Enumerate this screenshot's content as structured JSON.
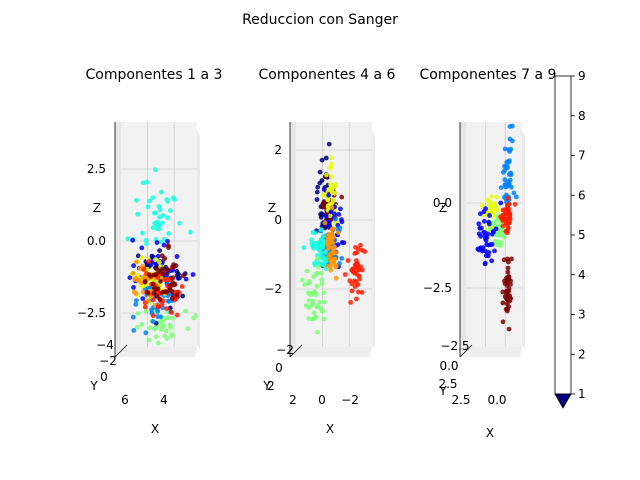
{
  "figure": {
    "suptitle": "Reduccion con Sanger"
  },
  "colormap": {
    "name": "jet",
    "levels": [
      1,
      2,
      3,
      4,
      5,
      6,
      7,
      8,
      9
    ],
    "colors": [
      "#00007f",
      "#0000fe",
      "#0080ff",
      "#15ffe1",
      "#7cff79",
      "#e4ff12",
      "#ff9400",
      "#ff1d00",
      "#7f0000"
    ],
    "tick_labels": [
      "1",
      "2",
      "3",
      "4",
      "5",
      "6",
      "7",
      "8",
      "9"
    ],
    "extend": "min"
  },
  "chart_data": [
    {
      "type": "scatter",
      "projection": "3d",
      "title": "Componentes 1 a 3",
      "xlabel": "X",
      "ylabel": "Y",
      "zlabel": "Z",
      "x_ticks": [
        "6",
        "4"
      ],
      "y_ticks": [
        "0",
        "−2",
        "−4"
      ],
      "z_ticks": [
        "2.5",
        "0.0",
        "−2.5"
      ],
      "zlim": [
        -3.5,
        4.2
      ],
      "clusters": [
        {
          "class": 4,
          "x": 4.7,
          "z": 1.4,
          "spread_x": 0.45,
          "spread_z": 0.9
        },
        {
          "class": 5,
          "x": 4.8,
          "z": -2.7,
          "spread_x": 0.55,
          "spread_z": 0.45
        },
        {
          "class": 2,
          "x": 4.7,
          "z": -0.4,
          "spread_x": 0.5,
          "spread_z": 0.5
        },
        {
          "class": 1,
          "x": 4.9,
          "z": -0.9,
          "spread_x": 0.45,
          "spread_z": 0.6
        },
        {
          "class": 3,
          "x": 4.6,
          "z": -1.9,
          "spread_x": 0.45,
          "spread_z": 0.4
        },
        {
          "class": 6,
          "x": 4.4,
          "z": -1.0,
          "spread_x": 0.3,
          "spread_z": 0.4
        },
        {
          "class": 7,
          "x": 4.2,
          "z": -1.2,
          "spread_x": 0.3,
          "spread_z": 0.4
        },
        {
          "class": 8,
          "x": 4.8,
          "z": -1.5,
          "spread_x": 0.4,
          "spread_z": 0.5
        },
        {
          "class": 9,
          "x": 4.9,
          "z": -1.2,
          "spread_x": 0.4,
          "spread_z": 0.6
        }
      ]
    },
    {
      "type": "scatter",
      "projection": "3d",
      "title": "Componentes 4 a 6",
      "xlabel": "X",
      "ylabel": "Y",
      "zlabel": "Z",
      "x_ticks": [
        "2",
        "0",
        "−2"
      ],
      "y_ticks": [
        "2",
        "0",
        "−2"
      ],
      "z_ticks": [
        "2",
        "0",
        "−2"
      ],
      "zlim": [
        -4.5,
        2.7
      ],
      "clusters": [
        {
          "class": 1,
          "x": 0.6,
          "z": 1.0,
          "spread_x": 0.35,
          "spread_z": 0.8
        },
        {
          "class": 9,
          "x": 0.3,
          "z": 0.5,
          "spread_x": 0.35,
          "spread_z": 0.5
        },
        {
          "class": 6,
          "x": 0.1,
          "z": 0.8,
          "spread_x": 0.3,
          "spread_z": 0.6
        },
        {
          "class": 2,
          "x": -0.2,
          "z": -0.4,
          "spread_x": 0.5,
          "spread_z": 0.6
        },
        {
          "class": 3,
          "x": 0.2,
          "z": -0.8,
          "spread_x": 0.45,
          "spread_z": 0.4
        },
        {
          "class": 4,
          "x": 1.2,
          "z": -1.0,
          "spread_x": 0.45,
          "spread_z": 0.4
        },
        {
          "class": 7,
          "x": 0.0,
          "z": -1.0,
          "spread_x": 0.35,
          "spread_z": 0.5
        },
        {
          "class": 8,
          "x": -2.3,
          "z": -2.0,
          "spread_x": 0.45,
          "spread_z": 0.55
        },
        {
          "class": 5,
          "x": 1.6,
          "z": -2.8,
          "spread_x": 0.4,
          "spread_z": 0.7
        }
      ]
    },
    {
      "type": "scatter",
      "projection": "3d",
      "title": "Componentes 7 a 9",
      "xlabel": "X",
      "ylabel": "Y",
      "zlabel": "Z",
      "x_ticks": [
        "2.5",
        "0.0"
      ],
      "y_ticks": [
        "2.5",
        "0.0",
        "−2.5"
      ],
      "z_ticks": [
        "0.0",
        "−2.5"
      ],
      "zlim": [
        -4.5,
        2.3
      ],
      "clusters": [
        {
          "class": 3,
          "x": -0.9,
          "z": 1.2,
          "spread_x": 0.35,
          "spread_z": 0.8
        },
        {
          "class": 6,
          "x": 1.0,
          "z": 0.0,
          "spread_x": 0.5,
          "spread_z": 0.35
        },
        {
          "class": 5,
          "x": 0.2,
          "z": -0.6,
          "spread_x": 0.35,
          "spread_z": 0.3
        },
        {
          "class": 8,
          "x": -0.7,
          "z": -0.2,
          "spread_x": 0.35,
          "spread_z": 0.35
        },
        {
          "class": 2,
          "x": 1.5,
          "z": -0.8,
          "spread_x": 0.55,
          "spread_z": 0.5
        },
        {
          "class": 9,
          "x": -0.8,
          "z": -2.6,
          "spread_x": 0.3,
          "spread_z": 0.5
        }
      ]
    }
  ]
}
